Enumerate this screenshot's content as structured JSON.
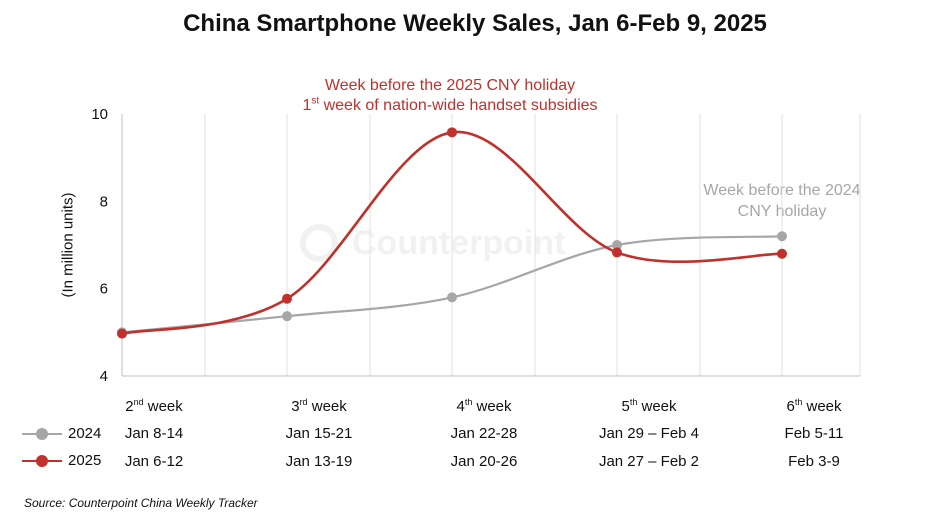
{
  "title": "China Smartphone Weekly Sales, Jan 6-Feb 9, 2025",
  "source": "Source: Counterpoint China Weekly Tracker",
  "watermark": "Counterpoint",
  "annotations": {
    "cny_2025": {
      "line1": "Week before the 2025 CNY holiday",
      "line2_ordinal": "1",
      "line2_suffix": "st",
      "line2_rest": " week of nation-wide handset subsidies",
      "color": "#c0312b"
    },
    "cny_2024": {
      "line1": "Week before the 2024",
      "line2": "CNY holiday",
      "color": "#a6a6a6"
    }
  },
  "weeks": [
    {
      "num": "2",
      "sup": "nd",
      "word": " week",
      "dates_2024": "Jan 8-14",
      "dates_2025": "Jan 6-12"
    },
    {
      "num": "3",
      "sup": "rd",
      "word": " week",
      "dates_2024": "Jan 15-21",
      "dates_2025": "Jan 13-19"
    },
    {
      "num": "4",
      "sup": "th",
      "word": " week",
      "dates_2024": "Jan 22-28",
      "dates_2025": "Jan 20-26"
    },
    {
      "num": "5",
      "sup": "th",
      "word": " week",
      "dates_2024": "Jan 29 – Feb 4",
      "dates_2025": "Jan 27 – Feb 2"
    },
    {
      "num": "6",
      "sup": "th",
      "word": " week",
      "dates_2024": "Feb 5-11",
      "dates_2025": "Feb 3-9"
    }
  ],
  "chart_data": {
    "type": "line",
    "title": "China Smartphone Weekly Sales, Jan 6-Feb 9, 2025",
    "ylabel": "(In million units)",
    "ylim": [
      4,
      10
    ],
    "yticks": [
      4,
      6,
      8,
      10
    ],
    "grid": "vertical",
    "categories": [
      "2nd week",
      "3rd week",
      "4th week",
      "5th week",
      "6th week"
    ],
    "series": [
      {
        "name": "2024",
        "values": [
          5.0,
          5.37,
          5.8,
          7.0,
          7.2
        ],
        "color": "#a6a6a6"
      },
      {
        "name": "2025",
        "values": [
          4.97,
          5.77,
          9.58,
          6.83,
          6.8
        ],
        "color": "#c0312b"
      }
    ]
  }
}
